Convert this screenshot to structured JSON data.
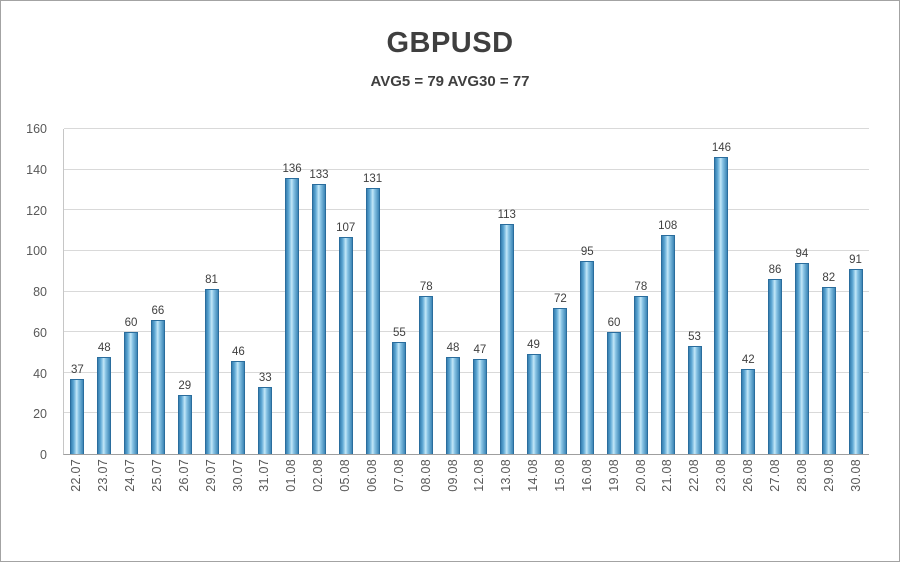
{
  "chart": {
    "title": "GBPUSD",
    "subtitle": "AVG5 = 79 AVG30 = 77"
  },
  "chart_data": {
    "type": "bar",
    "title": "GBPUSD",
    "subtitle": "AVG5 = 79 AVG30 = 77",
    "categories": [
      "22.07",
      "23.07",
      "24.07",
      "25.07",
      "26.07",
      "29.07",
      "30.07",
      "31.07",
      "01.08",
      "02.08",
      "05.08",
      "06.08",
      "07.08",
      "08.08",
      "09.08",
      "12.08",
      "13.08",
      "14.08",
      "15.08",
      "16.08",
      "19.08",
      "20.08",
      "21.08",
      "22.08",
      "23.08",
      "26.08",
      "27.08",
      "28.08",
      "29.08",
      "30.08"
    ],
    "values": [
      37,
      48,
      60,
      66,
      29,
      81,
      46,
      33,
      136,
      133,
      107,
      131,
      55,
      78,
      48,
      47,
      113,
      49,
      72,
      95,
      60,
      78,
      108,
      53,
      146,
      42,
      86,
      94,
      82,
      91
    ],
    "xlabel": "",
    "ylabel": "",
    "ylim": [
      0,
      160
    ],
    "yticks": [
      0,
      20,
      40,
      60,
      80,
      100,
      120,
      140,
      160
    ],
    "grid": true,
    "legend": "none",
    "bar_fill_edge": "#367fb0",
    "bar_fill_center": "#c2e7f8",
    "bar_border": "#2a6d9d",
    "gridline_color": "#d9d9d9",
    "axis_text_color": "#595959",
    "title_color": "#3f3f3f"
  }
}
